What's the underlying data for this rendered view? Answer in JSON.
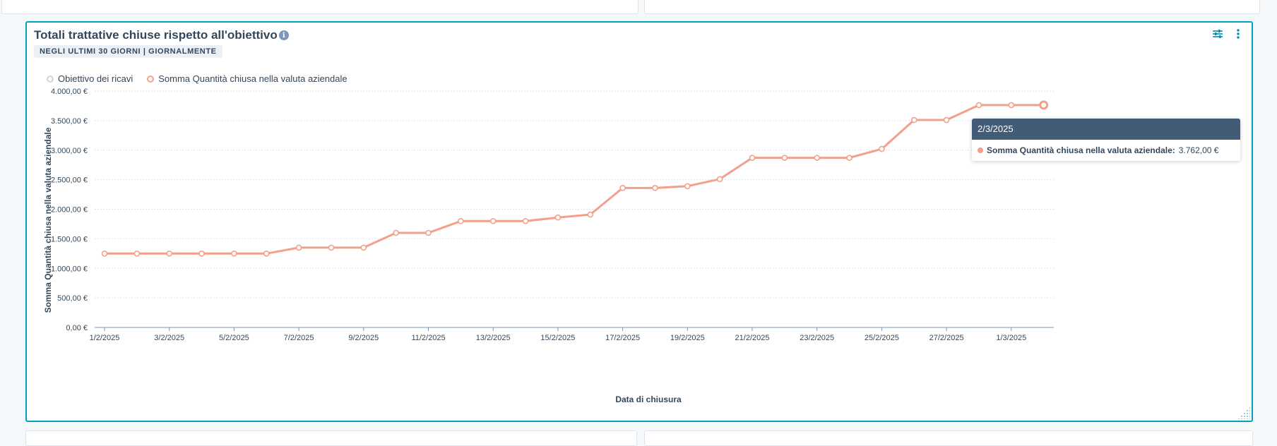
{
  "report": {
    "title": "Totali trattative chiuse rispetto all'obiettivo",
    "subtitle": "NEGLI ULTIMI 30 GIORNI | GIORNALMENTE",
    "info_icon": "info-icon",
    "filter_icon": "sliders-icon",
    "more_icon": "more-vertical-icon"
  },
  "legend": {
    "items": [
      {
        "label": "Obiettivo dei ricavi",
        "color": "#cbd6e2"
      },
      {
        "label": "Somma Quantità chiusa nella valuta aziendale",
        "color": "#f2a08a"
      }
    ]
  },
  "tooltip": {
    "date": "2/3/2025",
    "series_label": "Somma Quantità chiusa nella valuta aziendale:",
    "value": "3.762,00 €"
  },
  "chart_data": {
    "type": "line",
    "xlabel": "Data di chiusura",
    "ylabel": "Somma Quantità chiusa nella valuta aziendale",
    "ylim": [
      0,
      4000
    ],
    "y_ticks": [
      "0,00 €",
      "500,00 €",
      "1.000,00 €",
      "1.500,00 €",
      "2.000,00 €",
      "2.500,00 €",
      "3.000,00 €",
      "3.500,00 €",
      "4.000,00 €"
    ],
    "x_tick_labels": [
      "1/2/2025",
      "3/2/2025",
      "5/2/2025",
      "7/2/2025",
      "9/2/2025",
      "11/2/2025",
      "13/2/2025",
      "15/2/2025",
      "17/2/2025",
      "19/2/2025",
      "21/2/2025",
      "23/2/2025",
      "25/2/2025",
      "27/2/2025",
      "1/3/2025"
    ],
    "x": [
      "1/2/2025",
      "2/2/2025",
      "3/2/2025",
      "4/2/2025",
      "5/2/2025",
      "6/2/2025",
      "7/2/2025",
      "8/2/2025",
      "9/2/2025",
      "10/2/2025",
      "11/2/2025",
      "12/2/2025",
      "13/2/2025",
      "14/2/2025",
      "15/2/2025",
      "16/2/2025",
      "17/2/2025",
      "18/2/2025",
      "19/2/2025",
      "20/2/2025",
      "21/2/2025",
      "22/2/2025",
      "23/2/2025",
      "24/2/2025",
      "25/2/2025",
      "26/2/2025",
      "27/2/2025",
      "28/2/2025",
      "1/3/2025",
      "2/3/2025"
    ],
    "series": [
      {
        "name": "Somma Quantità chiusa nella valuta aziendale",
        "color": "#f2a08a",
        "values": [
          1250,
          1250,
          1250,
          1250,
          1250,
          1250,
          1350,
          1350,
          1350,
          1600,
          1600,
          1800,
          1800,
          1800,
          1860,
          1910,
          2360,
          2360,
          2390,
          2510,
          2870,
          2870,
          2870,
          2870,
          3020,
          3510,
          3510,
          3762,
          3762,
          3762
        ]
      }
    ],
    "grid": true
  }
}
